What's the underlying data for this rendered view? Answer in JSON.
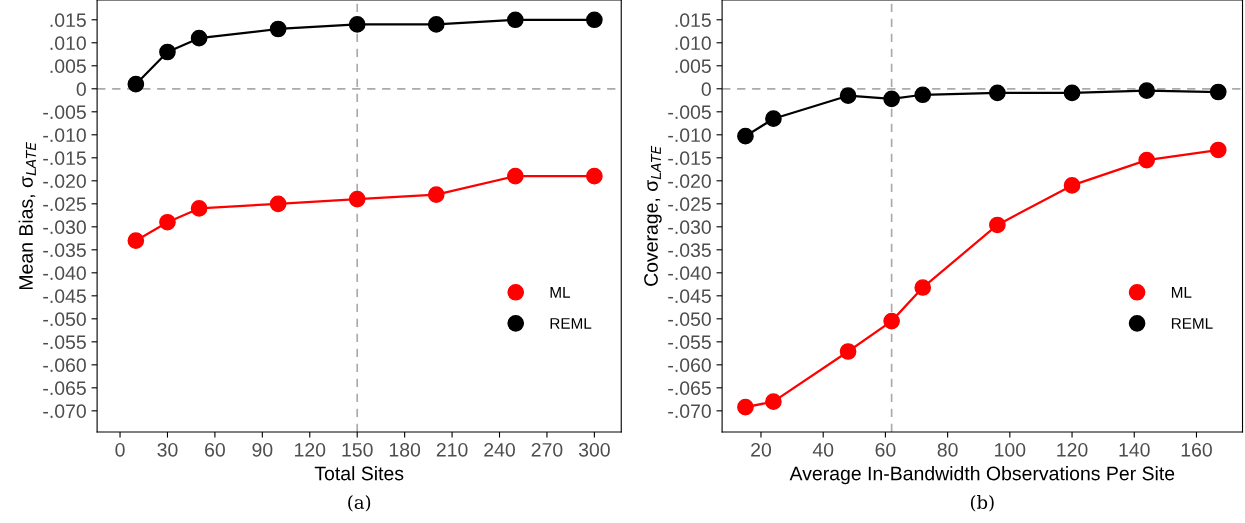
{
  "chart_data": [
    {
      "type": "line",
      "xlabel": "Total Sites",
      "ylabel": "Mean Bias, σ$_{LATE}$",
      "annotations": [
        "(a)"
      ],
      "x": [
        10,
        30,
        50,
        100,
        150,
        200,
        250,
        300
      ],
      "series": [
        {
          "name": "ML",
          "color": "#ff0000",
          "values": [
            -0.033,
            -0.029,
            -0.026,
            -0.025,
            -0.024,
            -0.023,
            -0.019,
            -0.019
          ]
        },
        {
          "name": "REML",
          "color": "#000000",
          "values": [
            0.001,
            0.008,
            0.011,
            0.013,
            0.014,
            0.014,
            0.015,
            0.015
          ]
        }
      ],
      "xlim": [
        -14.5,
        317
      ],
      "xticks": [
        0,
        30,
        60,
        90,
        120,
        150,
        180,
        210,
        240,
        270,
        300
      ],
      "ylim": [
        -0.0746,
        0.0193
      ],
      "yticks": [
        {
          "value": 0.015,
          "label": ".015"
        },
        {
          "value": 0.01,
          "label": ".010"
        },
        {
          "value": 0.005,
          "label": ".005"
        },
        0,
        {
          "value": -0.005,
          "label": "-.005"
        },
        {
          "value": -0.01,
          "label": "-.010"
        },
        {
          "value": -0.015,
          "label": "-.015"
        },
        {
          "value": -0.02,
          "label": "-.020"
        },
        {
          "value": -0.025,
          "label": "-.025"
        },
        {
          "value": -0.03,
          "label": "-.030"
        },
        {
          "value": -0.035,
          "label": "-.035"
        },
        {
          "value": -0.04,
          "label": "-.040"
        },
        {
          "value": -0.045,
          "label": "-.045"
        },
        {
          "value": -0.05,
          "label": "-.050"
        },
        {
          "value": -0.055,
          "label": "-.055"
        },
        {
          "value": -0.06,
          "label": "-.060"
        },
        {
          "value": -0.065,
          "label": "-.065"
        },
        {
          "value": -0.07,
          "label": "-.070"
        }
      ],
      "ref_lines": [
        {
          "axis": "y",
          "value": 0,
          "color": "#aaaaaa",
          "line_style": "dashed"
        },
        {
          "axis": "x",
          "value": 150,
          "color": "#aaaaaa",
          "line_style": "dashed"
        }
      ],
      "marker": "circle",
      "line_style": "solid",
      "grid": false,
      "legend": "bottom right"
    },
    {
      "type": "line",
      "xlabel": "Average In-Bandwidth Observations Per Site",
      "ylabel": "Coverage, σ$_{LATE}$",
      "annotations": [
        "(b)"
      ],
      "x": [
        15,
        24,
        48,
        62,
        72,
        96,
        120,
        144,
        167
      ],
      "series": [
        {
          "name": "ML",
          "color": "#ff0000",
          "values": [
            -0.0692,
            -0.068,
            -0.0571,
            -0.0505,
            -0.0432,
            -0.0296,
            -0.021,
            -0.0155,
            -0.0133
          ]
        },
        {
          "name": "REML",
          "color": "#000000",
          "values": [
            -0.0103,
            -0.0065,
            -0.0015,
            -0.0022,
            -0.0013,
            -0.0009,
            -0.0009,
            -0.0004,
            -0.0007
          ]
        }
      ],
      "xlim": [
        7.5,
        174.8
      ],
      "xticks": [
        20,
        40,
        60,
        80,
        100,
        120,
        140,
        160
      ],
      "ylim": [
        -0.0746,
        0.0193
      ],
      "yticks": [
        {
          "value": 0.015,
          "label": ".015"
        },
        {
          "value": 0.01,
          "label": ".010"
        },
        {
          "value": 0.005,
          "label": ".005"
        },
        0,
        {
          "value": -0.005,
          "label": "-.005"
        },
        {
          "value": -0.01,
          "label": "-.010"
        },
        {
          "value": -0.015,
          "label": "-.015"
        },
        {
          "value": -0.02,
          "label": "-.020"
        },
        {
          "value": -0.025,
          "label": "-.025"
        },
        {
          "value": -0.03,
          "label": "-.030"
        },
        {
          "value": -0.035,
          "label": "-.035"
        },
        {
          "value": -0.04,
          "label": "-.040"
        },
        {
          "value": -0.045,
          "label": "-.045"
        },
        {
          "value": -0.05,
          "label": "-.050"
        },
        {
          "value": -0.055,
          "label": "-.055"
        },
        {
          "value": -0.06,
          "label": "-.060"
        },
        {
          "value": -0.065,
          "label": "-.065"
        },
        {
          "value": -0.07,
          "label": "-.070"
        }
      ],
      "ref_lines": [
        {
          "axis": "y",
          "value": 0,
          "color": "#aaaaaa",
          "line_style": "dashed"
        },
        {
          "axis": "x",
          "value": 62,
          "color": "#aaaaaa",
          "line_style": "dashed"
        }
      ],
      "marker": "circle",
      "line_style": "solid",
      "grid": false,
      "legend": "bottom right"
    }
  ]
}
